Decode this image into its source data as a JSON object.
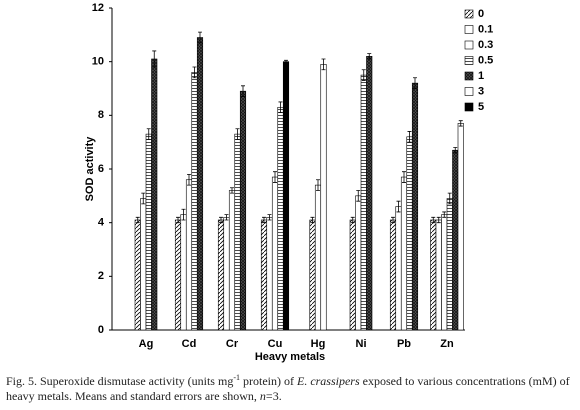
{
  "chart_data": {
    "type": "bar",
    "xlabel": "Heavy metals",
    "ylabel": "SOD activity",
    "categories": [
      "Ag",
      "Cd",
      "Cr",
      "Cu",
      "Hg",
      "Ni",
      "Pb",
      "Zn"
    ],
    "ylim": [
      0,
      12
    ],
    "yticks": [
      0,
      2,
      4,
      6,
      8,
      10,
      12
    ],
    "grid": false,
    "legend": "right",
    "series": [
      {
        "name": "0",
        "color": "#ffffff",
        "pattern": "diagonal",
        "values": [
          4.1,
          4.1,
          4.1,
          4.1,
          4.1,
          4.1,
          4.1,
          4.1
        ],
        "errors": [
          0.1,
          0.1,
          0.1,
          0.1,
          0.1,
          0.1,
          0.1,
          0.1
        ]
      },
      {
        "name": "0.1",
        "color": "#ffffff",
        "pattern": "none",
        "values": [
          null,
          4.3,
          4.2,
          4.2,
          null,
          null,
          4.6,
          4.1
        ],
        "errors": [
          null,
          0.2,
          0.1,
          0.1,
          null,
          null,
          0.2,
          0.1
        ]
      },
      {
        "name": "0.3",
        "color": "#ffffff",
        "pattern": "none",
        "values": [
          4.9,
          5.6,
          5.2,
          5.7,
          5.4,
          5.0,
          5.7,
          4.3
        ],
        "errors": [
          0.2,
          0.2,
          0.1,
          0.2,
          0.2,
          0.2,
          0.2,
          0.1
        ]
      },
      {
        "name": "0.5",
        "color": "#ffffff",
        "pattern": "horizontal",
        "values": [
          7.3,
          9.6,
          7.3,
          8.3,
          null,
          9.5,
          7.2,
          4.9
        ],
        "errors": [
          0.2,
          0.2,
          0.2,
          0.2,
          null,
          0.2,
          0.2,
          0.2
        ]
      },
      {
        "name": "1",
        "color": "#555555",
        "pattern": "crosshatch",
        "values": [
          10.1,
          10.9,
          8.9,
          null,
          null,
          10.2,
          9.2,
          6.7
        ],
        "errors": [
          0.3,
          0.2,
          0.2,
          null,
          null,
          0.1,
          0.2,
          0.1
        ]
      },
      {
        "name": "3",
        "color": "#ffffff",
        "pattern": "none",
        "values": [
          null,
          null,
          null,
          null,
          9.9,
          null,
          null,
          7.7
        ],
        "errors": [
          null,
          null,
          null,
          null,
          0.2,
          null,
          null,
          0.1
        ]
      },
      {
        "name": "5",
        "color": "#000000",
        "pattern": "none",
        "values": [
          null,
          null,
          null,
          10.0,
          null,
          null,
          null,
          null
        ],
        "errors": [
          null,
          null,
          null,
          0.05,
          null,
          null,
          null,
          null
        ]
      }
    ],
    "caption": [
      "Fig. 5. Superoxide dismutase activity (units mg",
      "-1",
      " protein) of ",
      "E. crassipers",
      " exposed to various concentrations (mM) of heavy metals. Means and standard errors are shown, ",
      "n",
      "=3."
    ]
  }
}
